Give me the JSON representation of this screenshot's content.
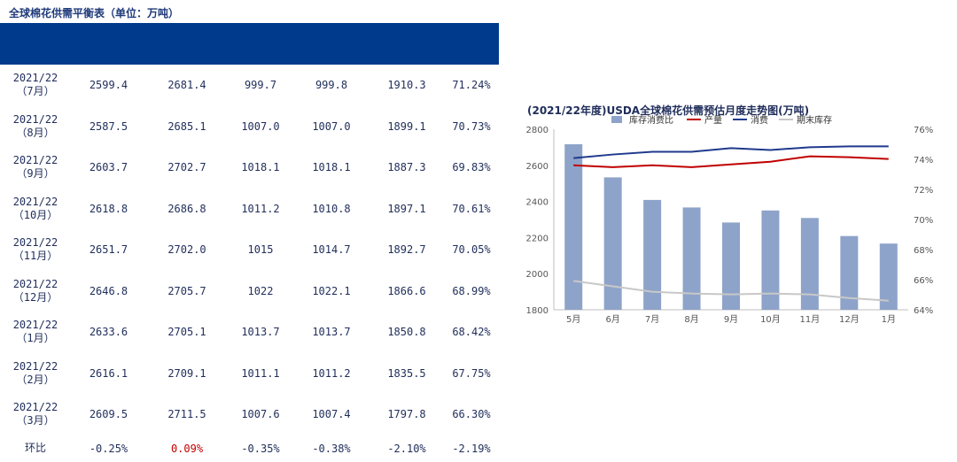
{
  "table_title": "全球棉花供需平衡表（单位：万吨）",
  "table": {
    "rows": [
      {
        "period_year": "2021/22",
        "period_month": "（7月）",
        "values": [
          "2599.4",
          "2681.4",
          "999.7",
          "999.8",
          "1910.3",
          "71.24%"
        ]
      },
      {
        "period_year": "2021/22",
        "period_month": "（8月）",
        "values": [
          "2587.5",
          "2685.1",
          "1007.0",
          "1007.0",
          "1899.1",
          "70.73%"
        ]
      },
      {
        "period_year": "2021/22",
        "period_month": "（9月）",
        "values": [
          "2603.7",
          "2702.7",
          "1018.1",
          "1018.1",
          "1887.3",
          "69.83%"
        ]
      },
      {
        "period_year": "2021/22",
        "period_month": "（10月）",
        "values": [
          "2618.8",
          "2686.8",
          "1011.2",
          "1010.8",
          "1897.1",
          "70.61%"
        ]
      },
      {
        "period_year": "2021/22",
        "period_month": "（11月）",
        "values": [
          "2651.7",
          "2702.0",
          "1015",
          "1014.7",
          "1892.7",
          "70.05%"
        ]
      },
      {
        "period_year": "2021/22",
        "period_month": "（12月）",
        "values": [
          "2646.8",
          "2705.7",
          "1022",
          "1022.1",
          "1866.6",
          "68.99%"
        ]
      },
      {
        "period_year": "2021/22",
        "period_month": "（1月）",
        "values": [
          "2633.6",
          "2705.1",
          "1013.7",
          "1013.7",
          "1850.8",
          "68.42%"
        ]
      },
      {
        "period_year": "2021/22",
        "period_month": "（2月）",
        "values": [
          "2616.1",
          "2709.1",
          "1011.1",
          "1011.2",
          "1835.5",
          "67.75%"
        ]
      },
      {
        "period_year": "2021/22",
        "period_month": "（3月）",
        "values": [
          "2609.5",
          "2711.5",
          "1007.6",
          "1007.4",
          "1797.8",
          "66.30%"
        ]
      }
    ],
    "change_row": {
      "label": "环比",
      "values": [
        "-0.25%",
        "0.09%",
        "-0.35%",
        "-0.38%",
        "-2.10%",
        "-2.19%"
      ],
      "highlight_index": 1,
      "highlight_color": "#c00000"
    }
  },
  "chart_data": {
    "type": "bar",
    "title": "(2021/22年度)USDA全球棉花供需预估月度走势图(万吨)",
    "categories": [
      "5月",
      "6月",
      "7月",
      "8月",
      "9月",
      "10月",
      "11月",
      "12月",
      "1月"
    ],
    "legend_position": "top-right",
    "y_left": {
      "min": 1800,
      "max": 2800,
      "ticks": [
        "1800",
        "2000",
        "2200",
        "2400",
        "2600",
        "2800"
      ]
    },
    "y_right": {
      "min": 64,
      "max": 76,
      "ticks": [
        "64%",
        "66%",
        "68%",
        "70%",
        "72%",
        "74%",
        "76%"
      ]
    },
    "series": [
      {
        "name": "库存消费比",
        "kind": "bar",
        "axis": "right",
        "color": "#8ea3c9",
        "values": [
          75.0,
          72.8,
          71.3,
          70.8,
          69.8,
          70.6,
          70.1,
          68.9,
          68.4
        ]
      },
      {
        "name": "产量",
        "kind": "line",
        "axis": "left",
        "color": "#c00000",
        "values": [
          2600,
          2590,
          2600,
          2590,
          2605,
          2620,
          2650,
          2645,
          2635
        ]
      },
      {
        "name": "消费",
        "kind": "line",
        "axis": "left",
        "color": "#1f3a8c",
        "values": [
          2640,
          2660,
          2675,
          2675,
          2695,
          2685,
          2700,
          2705,
          2705
        ]
      },
      {
        "name": "期末库存",
        "kind": "line",
        "axis": "left",
        "color": "#c8c8c8",
        "values": [
          1960,
          1930,
          1900,
          1890,
          1885,
          1890,
          1885,
          1865,
          1850
        ]
      }
    ]
  }
}
